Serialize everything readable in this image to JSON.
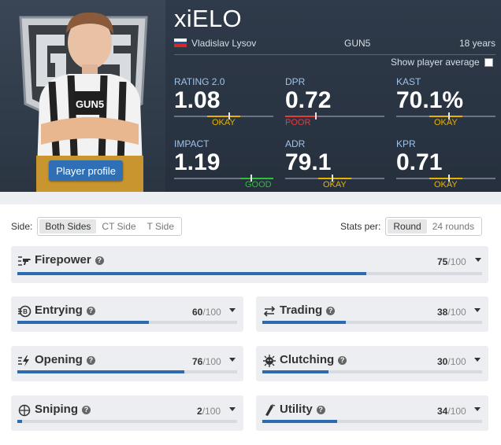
{
  "player": {
    "nickname": "xiELO",
    "real_name": "Vladislav Lysov",
    "team": "GUN5",
    "age": "18 years",
    "profile_button": "Player profile",
    "show_average_label": "Show player average"
  },
  "stats": [
    {
      "label": "RATING 2.0",
      "value": "1.08",
      "rating": "OKAY",
      "level": 0.55
    },
    {
      "label": "DPR",
      "value": "0.72",
      "rating": "POOR",
      "level": 0.3
    },
    {
      "label": "KAST",
      "value": "70.1%",
      "rating": "OKAY",
      "level": 0.52
    },
    {
      "label": "IMPACT",
      "value": "1.19",
      "rating": "GOOD",
      "level": 0.77
    },
    {
      "label": "ADR",
      "value": "79.1",
      "rating": "OKAY",
      "level": 0.47
    },
    {
      "label": "KPR",
      "value": "0.71",
      "rating": "OKAY",
      "level": 0.52
    }
  ],
  "filters": {
    "side_label": "Side:",
    "sides": [
      "Both Sides",
      "CT Side",
      "T Side"
    ],
    "side_selected": "Both Sides",
    "stats_per_label": "Stats per:",
    "per_options": [
      "Round",
      "24 rounds"
    ],
    "per_selected": "Round"
  },
  "categories": [
    {
      "name": "Firepower",
      "score": "75",
      "max": "/100",
      "icon": "firepower-icon",
      "value": 75
    },
    {
      "name": "Entrying",
      "score": "60",
      "max": "/100",
      "icon": "entrying-icon",
      "value": 60
    },
    {
      "name": "Trading",
      "score": "38",
      "max": "/100",
      "icon": "trading-icon",
      "value": 38
    },
    {
      "name": "Opening",
      "score": "76",
      "max": "/100",
      "icon": "opening-icon",
      "value": 76
    },
    {
      "name": "Clutching",
      "score": "30",
      "max": "/100",
      "icon": "clutching-icon",
      "value": 30
    },
    {
      "name": "Sniping",
      "score": "2",
      "max": "/100",
      "icon": "sniping-icon",
      "value": 2
    },
    {
      "name": "Utility",
      "score": "34",
      "max": "/100",
      "icon": "utility-icon",
      "value": 34
    }
  ],
  "colors": {
    "accent": "#2d6ab0",
    "okay": "#e8b300",
    "poor": "#e53b3b",
    "good": "#2fbf3a"
  }
}
